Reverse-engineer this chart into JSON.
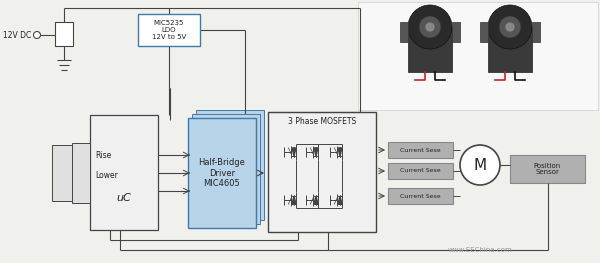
{
  "bg_color": "#f0f0ec",
  "line_color": "#444444",
  "blue_fill": "#b8d4e8",
  "blue_border": "#4477aa",
  "gray_fill": "#b0b0b0",
  "gray_fill_light": "#cccccc",
  "white_fill": "#ffffff",
  "off_white": "#f4f4f4",
  "ldo_label": "MIC5235\nLDO\n12V to 5V",
  "hb_label": "Half-Bridge\nDriver\nMIC4605",
  "mosfet_label": "3 Phase MOSFETS",
  "current_labels": [
    "Current Sese",
    "Current Sese",
    "Current Sese"
  ],
  "motor_label": "M",
  "position_label": "Position\nSensor",
  "uc_label": "uC",
  "rise_label": "Rise",
  "lower_label": "Lower",
  "dc_label": "12V DC"
}
